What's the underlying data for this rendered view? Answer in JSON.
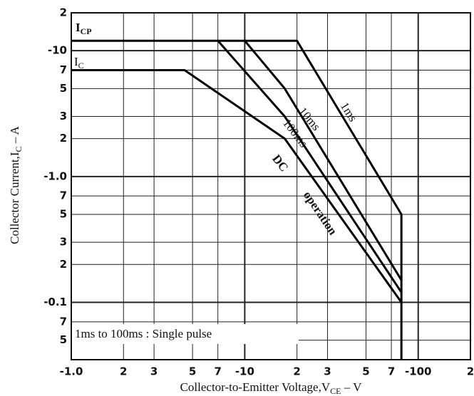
{
  "chart_data": {
    "type": "line",
    "log_x": true,
    "log_y": true,
    "grid": true,
    "xlim": [
      -1,
      -200
    ],
    "ylim": [
      -20,
      -0.035
    ],
    "xticks": [
      {
        "value": -1,
        "label": "-1.0"
      },
      {
        "value": -2,
        "label": "2"
      },
      {
        "value": -3,
        "label": "3"
      },
      {
        "value": -5,
        "label": "5"
      },
      {
        "value": -7,
        "label": "7"
      },
      -10,
      {
        "value": -20,
        "label": "2"
      },
      {
        "value": -30,
        "label": "3"
      },
      {
        "value": -50,
        "label": "5"
      },
      {
        "value": -70,
        "label": "7"
      },
      -100,
      {
        "value": -200,
        "label": "2"
      }
    ],
    "yticks": [
      {
        "value": -20,
        "label": "2"
      },
      -10,
      {
        "value": -7,
        "label": "7"
      },
      {
        "value": -5,
        "label": "5"
      },
      {
        "value": -3,
        "label": "3"
      },
      {
        "value": -2,
        "label": "2"
      },
      {
        "value": -1,
        "label": "-1.0"
      },
      {
        "value": -0.7,
        "label": "7"
      },
      {
        "value": -0.5,
        "label": "5"
      },
      {
        "value": -0.3,
        "label": "3"
      },
      {
        "value": -0.2,
        "label": "2"
      },
      {
        "value": -0.1,
        "label": "-0.1"
      },
      {
        "value": -0.07,
        "label": "7"
      },
      {
        "value": -0.05,
        "label": "5"
      }
    ],
    "x_label": {
      "text": "Collector-to-Emitter Voltage,V",
      "sub": "CE",
      "tail": " – V"
    },
    "y_label": {
      "text": "Collector Current,I",
      "sub": "C",
      "tail": " – A"
    },
    "series": [
      {
        "name": "1ms",
        "color": "#000000",
        "x": [
          -1,
          -20,
          -80,
          -80
        ],
        "values": [
          -12,
          -12,
          -0.5,
          -0.035
        ]
      },
      {
        "name": "10ms",
        "color": "#000000",
        "x": [
          -10,
          -17,
          -80
        ],
        "values": [
          -12,
          -5,
          -0.15
        ]
      },
      {
        "name": "100ms",
        "color": "#000000",
        "x": [
          -7,
          -17,
          -80
        ],
        "values": [
          -12,
          -3,
          -0.12
        ]
      },
      {
        "name": "DC",
        "color": "#000000",
        "x": [
          -1,
          -4.5,
          -17,
          -80
        ],
        "values": [
          -7,
          -7,
          -2,
          -0.1
        ]
      }
    ],
    "curve_labels": [
      {
        "text": "I",
        "sub": "CP"
      },
      {
        "text": "I",
        "sub": "C"
      },
      {
        "text": "operation"
      }
    ],
    "note": "1ms to 100ms : Single pulse"
  }
}
